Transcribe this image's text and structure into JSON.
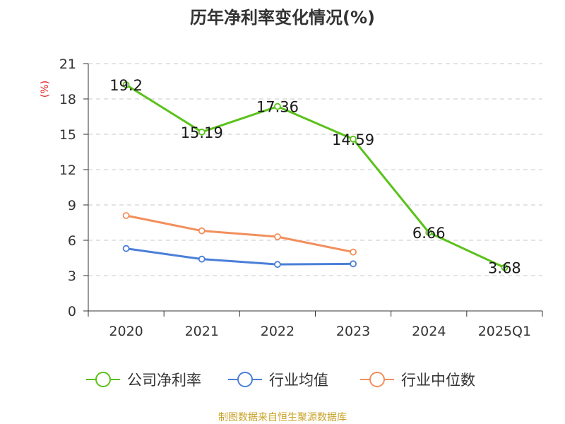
{
  "colors": {
    "company": "#5ac21a",
    "industry_avg": "#4a7fd8",
    "industry_median": "#f28f5c",
    "source": "#c9a227",
    "unit": "#e02020"
  },
  "chart_data": {
    "type": "line",
    "title": "历年净利率变化情况(%)",
    "ylabel": "(%)",
    "categories": [
      "2020",
      "2021",
      "2022",
      "2023",
      "2024",
      "2025Q1"
    ],
    "yticks": [
      "0",
      "3",
      "6",
      "9",
      "12",
      "15",
      "18",
      "21"
    ],
    "ylim": [
      0,
      21
    ],
    "grid": true,
    "legend_position": "bottom",
    "series": [
      {
        "name": "公司净利率",
        "color_key": "company",
        "values": [
          19.2,
          15.19,
          17.36,
          14.59,
          6.66,
          3.68
        ],
        "labels": [
          "19.2",
          "15.19",
          "17.36",
          "14.59",
          "6.66",
          "3.68"
        ]
      },
      {
        "name": "行业均值",
        "color_key": "industry_avg",
        "values": [
          5.3,
          4.4,
          3.95,
          4.0,
          null,
          null
        ]
      },
      {
        "name": "行业中位数",
        "color_key": "industry_median",
        "values": [
          8.1,
          6.8,
          6.3,
          5.0,
          null,
          null
        ]
      }
    ]
  },
  "source_text": "制图数据来自恒生聚源数据库"
}
